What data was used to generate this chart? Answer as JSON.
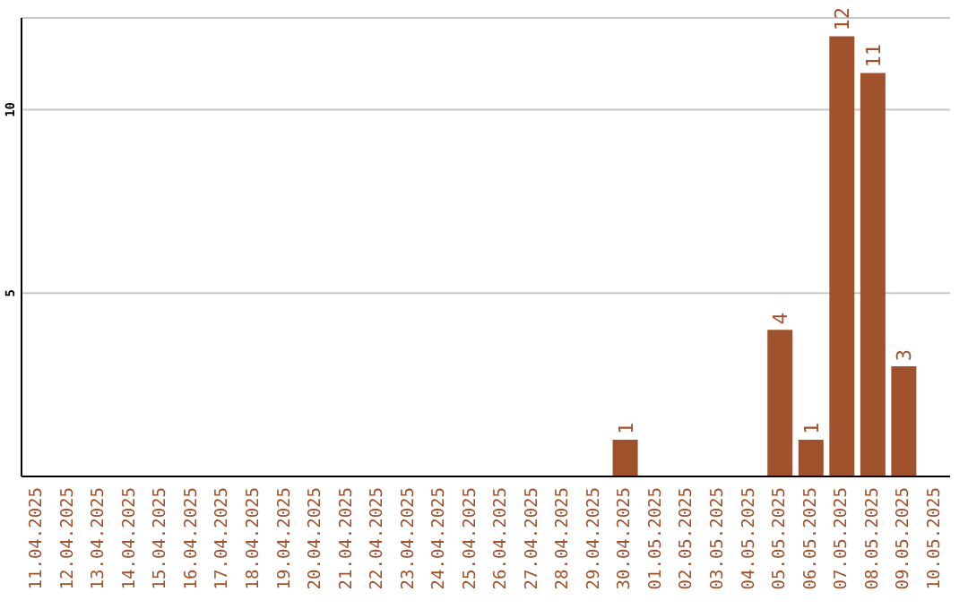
{
  "chart_data": {
    "type": "bar",
    "categories": [
      "11.04.2025",
      "12.04.2025",
      "13.04.2025",
      "14.04.2025",
      "15.04.2025",
      "16.04.2025",
      "17.04.2025",
      "18.04.2025",
      "19.04.2025",
      "20.04.2025",
      "21.04.2025",
      "22.04.2025",
      "23.04.2025",
      "24.04.2025",
      "25.04.2025",
      "26.04.2025",
      "27.04.2025",
      "28.04.2025",
      "29.04.2025",
      "30.04.2025",
      "01.05.2025",
      "02.05.2025",
      "03.05.2025",
      "04.05.2025",
      "05.05.2025",
      "06.05.2025",
      "07.05.2025",
      "08.05.2025",
      "09.05.2025",
      "10.05.2025"
    ],
    "values": [
      null,
      null,
      null,
      null,
      null,
      null,
      null,
      null,
      null,
      null,
      null,
      null,
      null,
      null,
      null,
      null,
      null,
      null,
      null,
      1,
      null,
      null,
      null,
      null,
      4,
      1,
      12,
      11,
      3,
      null
    ],
    "color": "#a0522d",
    "ylim": [
      0,
      12.5
    ],
    "yticks": [
      5,
      10
    ],
    "grid": "y",
    "data_labels": true
  }
}
